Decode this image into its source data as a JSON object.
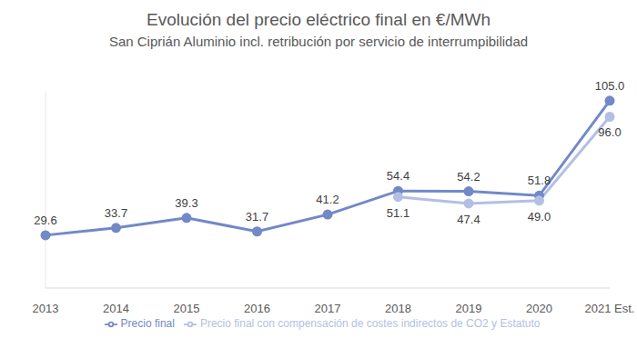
{
  "chart_data": {
    "type": "line",
    "title": "Evolución del precio eléctrico final en €/MWh",
    "subtitle": "San Ciprián Aluminio incl. retribución por servicio de interrumpibilidad",
    "categories": [
      "2013",
      "2014",
      "2015",
      "2016",
      "2017",
      "2018",
      "2019",
      "2020",
      "2021 Est."
    ],
    "series": [
      {
        "name": "Precio final",
        "color": "#7289c8",
        "marker": "circle",
        "line_style": "solid",
        "values": [
          29.6,
          33.7,
          39.3,
          31.7,
          41.2,
          54.4,
          54.2,
          51.8,
          105.0
        ],
        "value_labels": [
          "29.6",
          "33.7",
          "39.3",
          "31.7",
          "41.2",
          "54.4",
          "54.2",
          "51.8",
          "105.0"
        ]
      },
      {
        "name": "Precio final con compensación de costes indirectos de CO2 y Estatuto",
        "color": "#b4bfe4",
        "marker": "circle",
        "line_style": "solid",
        "values": [
          null,
          null,
          null,
          null,
          null,
          51.1,
          47.4,
          49.0,
          96.0
        ],
        "value_labels": [
          null,
          null,
          null,
          null,
          null,
          "51.1",
          "47.4",
          "49.0",
          "96.0"
        ]
      }
    ],
    "ylim": [
      0,
      110
    ],
    "tick_labels": "x",
    "data_labels": true,
    "legend": "bottom"
  }
}
